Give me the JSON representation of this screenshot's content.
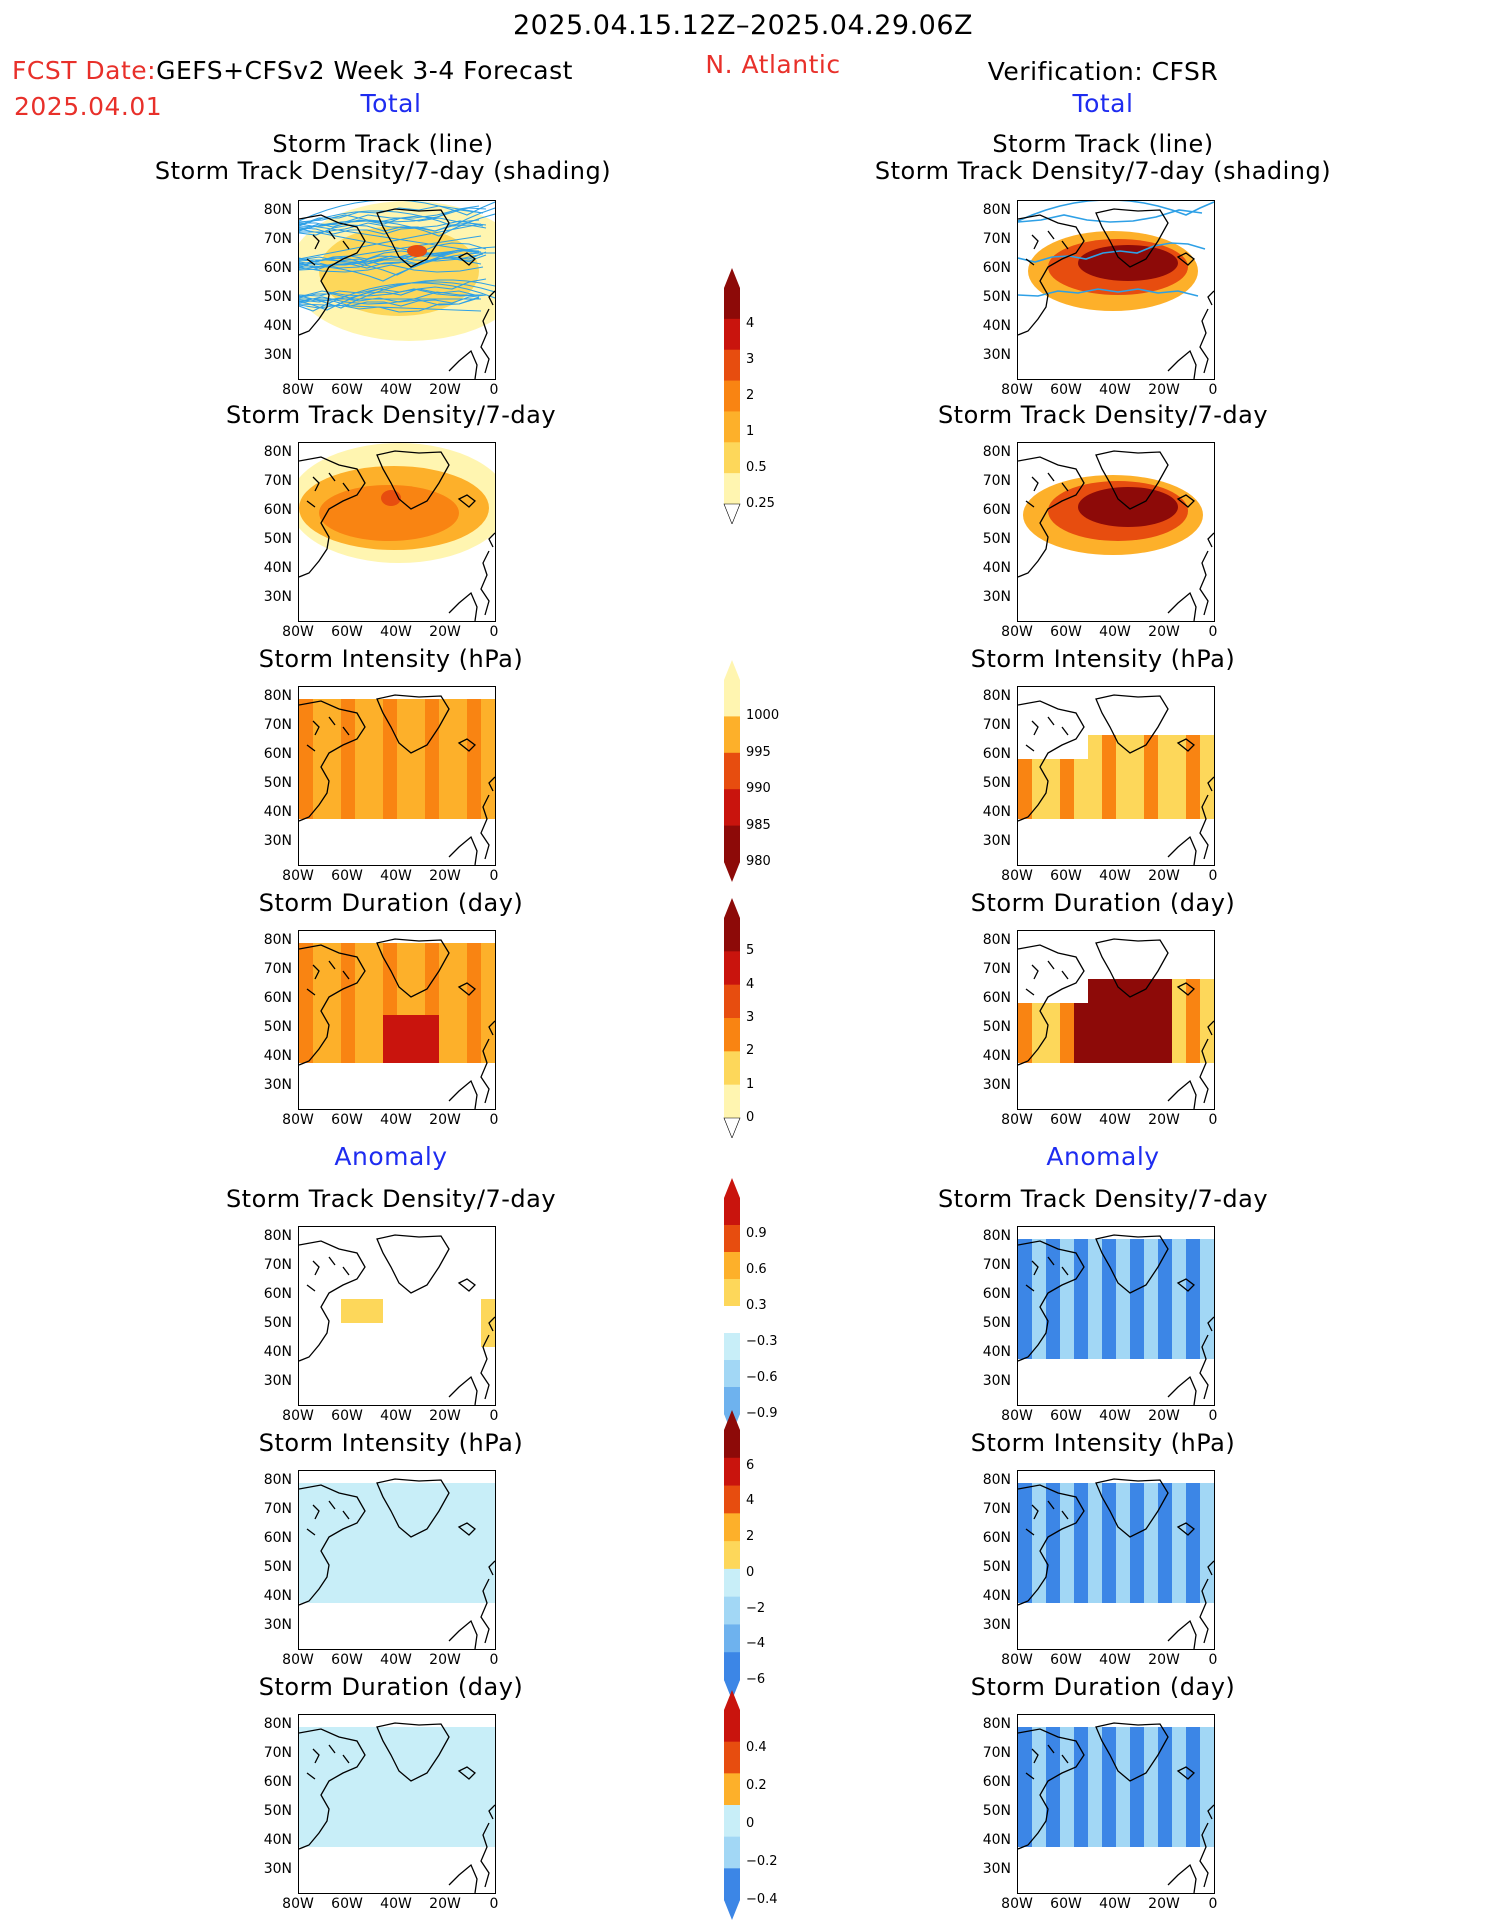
{
  "header": {
    "period": "2025.04.15.12Z–2025.04.29.06Z",
    "fcst_label": "FCST Date:",
    "fcst_model": "GEFS+CFSv2 Week 3-4 Forecast",
    "fcst_date": "2025.04.01",
    "region": "N. Atlantic",
    "verification": "Verification: CFSR",
    "left_total": "Total",
    "right_total": "Total",
    "left_anomaly": "Anomaly",
    "right_anomaly": "Anomaly"
  },
  "titles": {
    "track_line": "Storm Track (line)",
    "track_shading": "Storm Track Density/7-day (shading)",
    "density": "Storm Track Density/7-day",
    "intensity": "Storm Intensity (hPa)",
    "duration": "Storm Duration (day)"
  },
  "axes": {
    "lat": [
      "80N",
      "70N",
      "60N",
      "50N",
      "40N",
      "30N"
    ],
    "lon": [
      "80W",
      "60W",
      "40W",
      "20W",
      "0"
    ]
  },
  "colorbars": {
    "total_density": [
      "4",
      "3",
      "2",
      "1",
      "0.5",
      "0.25"
    ],
    "total_intensity": [
      "1000",
      "995",
      "990",
      "985",
      "980"
    ],
    "total_duration": [
      "5",
      "4",
      "3",
      "2",
      "1",
      "0"
    ],
    "anom_density": [
      "0.9",
      "0.6",
      "0.3",
      "−0.3",
      "−0.6",
      "−0.9"
    ],
    "anom_intensity": [
      "6",
      "4",
      "2",
      "0",
      "−2",
      "−4",
      "−6"
    ],
    "anom_duration": [
      "0.4",
      "0.2",
      "0",
      "−0.2",
      "−0.4"
    ]
  },
  "colors": {
    "title_red": "#e8302a",
    "title_blue": "#1e2cf0",
    "track_line": "#2ea0e6",
    "warm": [
      "#fff5b0",
      "#fdd75a",
      "#fdb02a",
      "#f98412",
      "#e74d0f",
      "#c9140d",
      "#8d0a08"
    ],
    "cool": [
      "#c8eef8",
      "#a2d7f5",
      "#6eb2ee",
      "#3c86e6",
      "#1a5fd6"
    ]
  }
}
